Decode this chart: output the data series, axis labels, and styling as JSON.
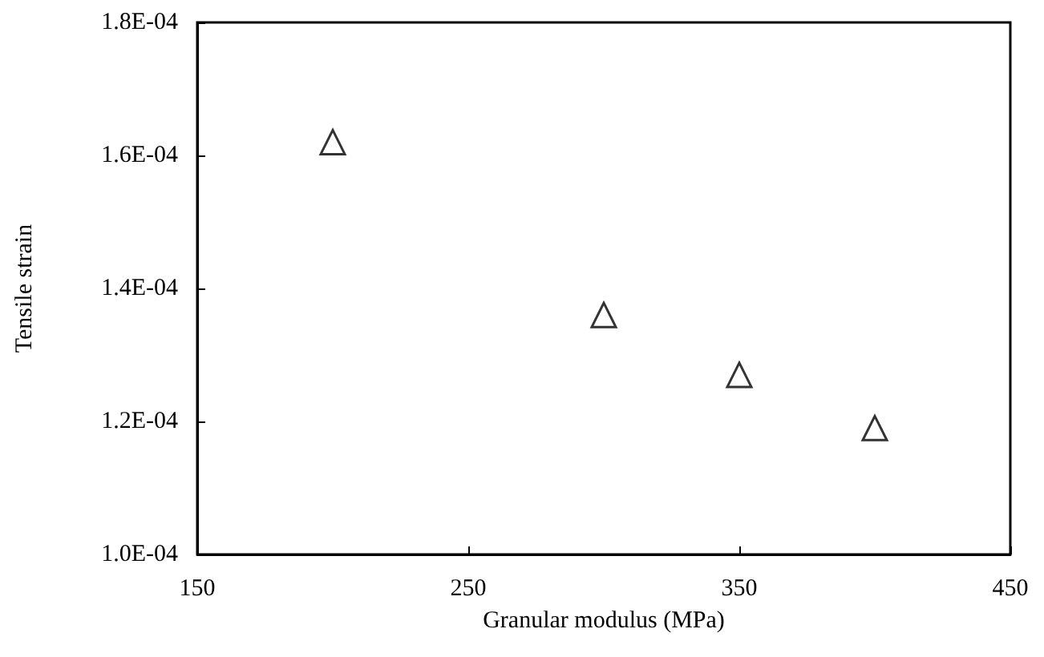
{
  "chart_data": {
    "type": "scatter",
    "xlabel": "Granular modulus (MPa)",
    "ylabel": "Tensile strain",
    "x": [
      200,
      300,
      350,
      400
    ],
    "series": [
      {
        "color": "#000000",
        "values": [
          0.000162,
          0.000136,
          0.000127,
          0.000119
        ]
      }
    ],
    "xlim": [
      150,
      450
    ],
    "xticks": [
      150,
      250,
      350,
      450
    ],
    "ylim": [
      0.0001,
      0.00018
    ],
    "yticks": [
      {
        "value": 0.0001,
        "label": "1.0E-04"
      },
      {
        "value": 0.00012,
        "label": "1.2E-04"
      },
      {
        "value": 0.00014,
        "label": "1.4E-04"
      },
      {
        "value": 0.00016,
        "label": "1.6E-04"
      },
      {
        "value": 0.00018,
        "label": "1.8E-04"
      }
    ],
    "marker": "triangle"
  }
}
